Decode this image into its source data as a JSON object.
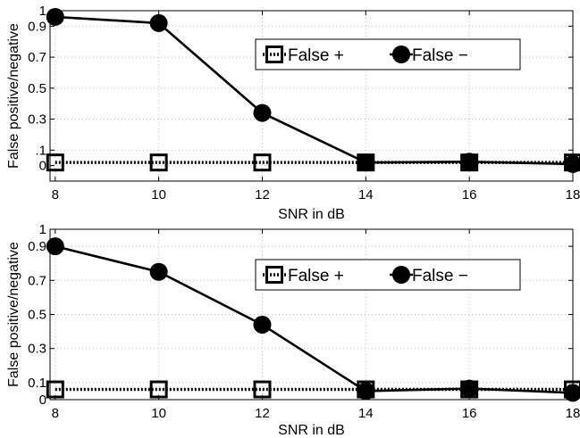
{
  "chart_data": [
    {
      "type": "line",
      "xlabel": "SNR in dB",
      "ylabel": "False positive/negative",
      "x": [
        8,
        10,
        12,
        14,
        16,
        18
      ],
      "xlim": [
        7.9,
        18
      ],
      "ylim": [
        -0.1,
        1.0
      ],
      "xticks": [
        "8",
        "10",
        "12",
        "14",
        "16",
        "18"
      ],
      "yticks": [
        {
          "value": 0,
          "label": "0"
        },
        {
          "value": 0.1,
          "label": ".1"
        },
        {
          "value": 0.3,
          "label": "0.3"
        },
        {
          "value": 0.5,
          "label": "0.5"
        },
        {
          "value": 0.7,
          "label": "0.7"
        },
        {
          "value": 0.9,
          "label": "0.9"
        },
        {
          "value": 1.0,
          "label": "1"
        }
      ],
      "grid": true,
      "legend_position": "upper-right",
      "series": [
        {
          "name": "False +",
          "marker": "square",
          "linestyle": "dotted",
          "values": [
            0.02,
            0.02,
            0.02,
            0.02,
            0.02,
            0.02
          ]
        },
        {
          "name": "False −",
          "marker": "circle",
          "linestyle": "solid",
          "values": [
            0.96,
            0.92,
            0.34,
            0.02,
            0.025,
            0.01
          ]
        }
      ]
    },
    {
      "type": "line",
      "xlabel": "SNR in dB",
      "ylabel": "False positive/negative",
      "x": [
        8,
        10,
        12,
        14,
        16,
        18
      ],
      "xlim": [
        7.9,
        18
      ],
      "ylim": [
        0,
        1.0
      ],
      "xticks": [
        "8",
        "10",
        "12",
        "14",
        "16",
        "18"
      ],
      "yticks": [
        {
          "value": 0,
          "label": "0"
        },
        {
          "value": 0.1,
          "label": "0.1"
        },
        {
          "value": 0.3,
          "label": "0.3"
        },
        {
          "value": 0.5,
          "label": "0.5"
        },
        {
          "value": 0.7,
          "label": "0.7"
        },
        {
          "value": 0.9,
          "label": "0.9"
        },
        {
          "value": 1.0,
          "label": "1"
        }
      ],
      "grid": true,
      "legend_position": "upper-right",
      "series": [
        {
          "name": "False +",
          "marker": "square",
          "linestyle": "dotted",
          "values": [
            0.06,
            0.06,
            0.06,
            0.06,
            0.06,
            0.06
          ]
        },
        {
          "name": "False −",
          "marker": "circle",
          "linestyle": "solid",
          "values": [
            0.9,
            0.75,
            0.44,
            0.05,
            0.065,
            0.04
          ]
        }
      ]
    }
  ]
}
